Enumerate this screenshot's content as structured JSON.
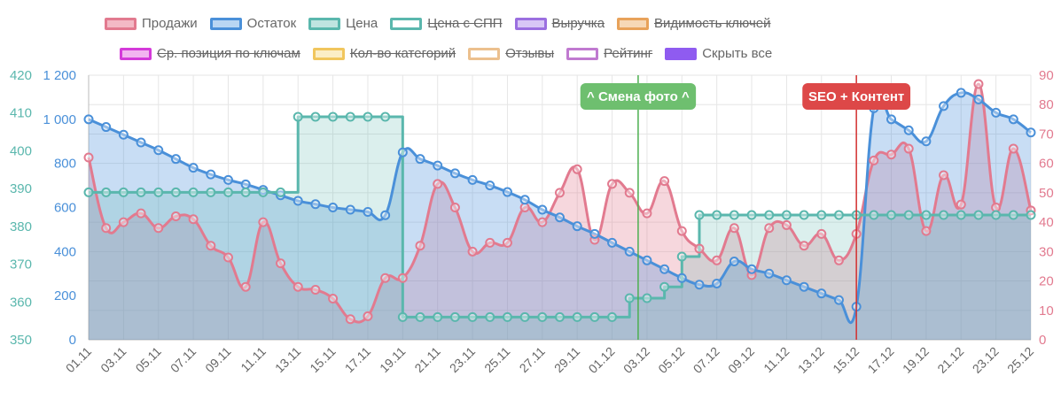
{
  "legend": [
    {
      "label": "Продажи",
      "color": "#e27a8f",
      "fill": "#f3b9c5",
      "hidden": false
    },
    {
      "label": "Остаток",
      "color": "#4a90d9",
      "fill": "#b9d6f3",
      "hidden": false
    },
    {
      "label": "Цена",
      "color": "#5ab7ad",
      "fill": "#bfe4e0",
      "hidden": false
    },
    {
      "label": "Цена с СПП",
      "color": "#5ab7ad",
      "fill": "#ffffff",
      "hidden": true
    },
    {
      "label": "Выручка",
      "color": "#9b6fe0",
      "fill": "#d8c6f6",
      "hidden": true
    },
    {
      "label": "Видимость ключей",
      "color": "#e8a25a",
      "fill": "#f6d8b6",
      "hidden": true
    },
    {
      "label": "Ср. позиция по ключам",
      "color": "#d43ad9",
      "fill": "#f2b4f0",
      "hidden": true
    },
    {
      "label": "Кол-во категорий",
      "color": "#f1c65d",
      "fill": "#fbeec6",
      "hidden": true
    },
    {
      "label": "Отзывы",
      "color": "#ecc08e",
      "fill": "#ffffff",
      "hidden": true
    },
    {
      "label": "Рейтинг",
      "color": "#c07ad0",
      "fill": "#ffffff",
      "hidden": true
    },
    {
      "label": "Скрыть все",
      "color": "#8f5bf0",
      "fill": "#8f5bf0",
      "hidden": false
    }
  ],
  "annotations": [
    {
      "label": "^ Смена фото ^",
      "date": "03.12",
      "color": "#4caf50",
      "bg": "#6ebf6f"
    },
    {
      "label": "SEO + Контент",
      "date": "15.12",
      "color": "#d32f2f",
      "bg": "#dd4848"
    }
  ],
  "chart_data": {
    "type": "line",
    "x": [
      "01.11",
      "02.11",
      "03.11",
      "04.11",
      "05.11",
      "06.11",
      "07.11",
      "08.11",
      "09.11",
      "10.11",
      "11.11",
      "12.11",
      "13.11",
      "14.11",
      "15.11",
      "16.11",
      "17.11",
      "18.11",
      "19.11",
      "20.11",
      "21.11",
      "22.11",
      "23.11",
      "24.11",
      "25.11",
      "26.11",
      "27.11",
      "28.11",
      "29.11",
      "30.11",
      "01.12",
      "02.12",
      "03.12",
      "04.12",
      "05.12",
      "06.12",
      "07.12",
      "08.12",
      "09.12",
      "10.12",
      "11.12",
      "12.12",
      "13.12",
      "14.12",
      "15.12",
      "16.12",
      "17.12",
      "18.12",
      "19.12",
      "20.12",
      "21.12",
      "22.12",
      "23.12",
      "24.12",
      "25.12"
    ],
    "xticks": [
      "01.11",
      "03.11",
      "05.11",
      "07.11",
      "09.11",
      "11.11",
      "13.11",
      "15.11",
      "17.11",
      "19.11",
      "21.11",
      "23.11",
      "25.11",
      "27.11",
      "29.11",
      "01.12",
      "03.12",
      "05.12",
      "07.12",
      "09.12",
      "11.12",
      "13.12",
      "15.12",
      "17.12",
      "19.12",
      "21.12",
      "23.12",
      "25.12"
    ],
    "axes": {
      "price": {
        "side": "left-outer",
        "min": 350,
        "max": 420,
        "ticks": [
          "350",
          "360",
          "370",
          "380",
          "390",
          "400",
          "410",
          "420"
        ],
        "color": "#5ab7ad"
      },
      "stock": {
        "side": "left-inner",
        "min": 0,
        "max": 1200,
        "ticks": [
          "0",
          "200",
          "400",
          "600",
          "800",
          "1 000",
          "1 200"
        ],
        "color": "#4a90d9"
      },
      "sales": {
        "side": "right",
        "min": 0,
        "max": 90,
        "ticks": [
          "0",
          "10",
          "20",
          "30",
          "40",
          "50",
          "60",
          "70",
          "80",
          "90"
        ],
        "color": "#e27a8f"
      }
    },
    "grid": true,
    "legend_position": "top",
    "series": [
      {
        "name": "Продажи",
        "axis": "sales",
        "step": false,
        "color": "#e27a8f",
        "fill": "rgba(226,122,143,0.30)",
        "values": [
          62,
          38,
          40,
          43,
          38,
          42,
          41,
          32,
          28,
          18,
          40,
          26,
          18,
          17,
          14,
          7,
          8,
          21,
          21,
          32,
          53,
          45,
          30,
          33,
          33,
          45,
          40,
          50,
          58,
          34,
          53,
          50,
          43,
          54,
          37,
          31,
          27,
          38,
          22,
          38,
          39,
          32,
          36,
          27,
          36,
          61,
          63,
          65,
          37,
          56,
          46,
          87,
          45,
          65,
          44
        ]
      },
      {
        "name": "Остаток",
        "axis": "stock",
        "step": false,
        "color": "#4a90d9",
        "fill": "rgba(74,144,217,0.30)",
        "values": [
          1000,
          965,
          930,
          895,
          860,
          820,
          780,
          750,
          725,
          705,
          680,
          655,
          630,
          615,
          600,
          590,
          580,
          565,
          850,
          820,
          790,
          755,
          725,
          700,
          670,
          635,
          590,
          555,
          515,
          480,
          440,
          400,
          360,
          320,
          280,
          250,
          255,
          355,
          320,
          300,
          270,
          240,
          210,
          180,
          150,
          1050,
          1000,
          950,
          900,
          1060,
          1120,
          1090,
          1030,
          1000,
          940
        ]
      },
      {
        "name": "Цена",
        "axis": "price",
        "step": true,
        "color": "#5ab7ad",
        "fill": "rgba(90,183,173,0.22)",
        "values": [
          389,
          389,
          389,
          389,
          389,
          389,
          389,
          389,
          389,
          389,
          389,
          389,
          409,
          409,
          409,
          409,
          409,
          409,
          356,
          356,
          356,
          356,
          356,
          356,
          356,
          356,
          356,
          356,
          356,
          356,
          356,
          361,
          361,
          364,
          372,
          383,
          383,
          383,
          383,
          383,
          383,
          383,
          383,
          383,
          383,
          383,
          383,
          383,
          383,
          383,
          383,
          383,
          383,
          383,
          383
        ]
      }
    ]
  }
}
